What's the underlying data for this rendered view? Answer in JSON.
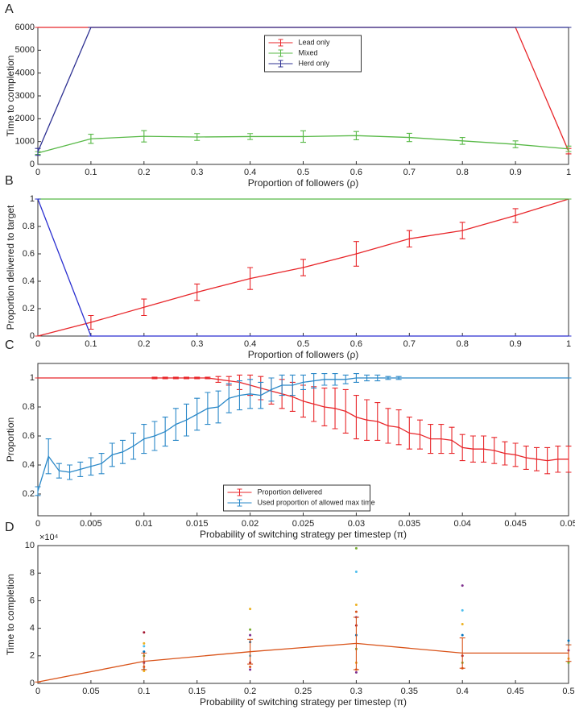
{
  "chart_data": [
    {
      "type": "line",
      "label": "A",
      "xlabel": "Proportion of followers (ρ)",
      "ylabel": "Time to completion",
      "x": [
        0,
        0.1,
        0.2,
        0.3,
        0.4,
        0.5,
        0.6,
        0.7,
        0.8,
        0.9,
        1
      ],
      "xlim": [
        0,
        1
      ],
      "xticks": [
        0,
        0.1,
        0.2,
        0.3,
        0.4,
        0.5,
        0.6,
        0.7,
        0.8,
        0.9,
        1
      ],
      "ylim": [
        0,
        6000
      ],
      "yticks": [
        0,
        1000,
        2000,
        3000,
        4000,
        5000,
        6000
      ],
      "legend": "upper center",
      "series": [
        {
          "name": "Lead only",
          "color": "#e8262a",
          "values": [
            6000,
            6000,
            6000,
            6000,
            6000,
            6000,
            6000,
            6000,
            6000,
            6000,
            580
          ],
          "errors": [
            0,
            0,
            0,
            0,
            0,
            0,
            0,
            0,
            0,
            0,
            120
          ]
        },
        {
          "name": "Mixed",
          "color": "#58b947",
          "values": [
            500,
            1120,
            1230,
            1200,
            1220,
            1220,
            1260,
            1180,
            1030,
            880,
            680
          ],
          "errors": [
            60,
            200,
            250,
            150,
            130,
            250,
            180,
            180,
            150,
            150,
            120
          ]
        },
        {
          "name": "Herd only",
          "color": "#2e3192",
          "values": [
            550,
            6000,
            6000,
            6000,
            6000,
            6000,
            6000,
            6000,
            6000,
            6000,
            6000
          ],
          "errors": [
            150,
            0,
            0,
            0,
            0,
            0,
            0,
            0,
            0,
            0,
            0
          ]
        }
      ]
    },
    {
      "type": "line",
      "label": "B",
      "xlabel": "Proportion of followers (ρ)",
      "ylabel": "Proportion delivered to target",
      "x": [
        0,
        0.1,
        0.2,
        0.3,
        0.4,
        0.5,
        0.6,
        0.7,
        0.8,
        0.9,
        1
      ],
      "xlim": [
        0,
        1
      ],
      "xticks": [
        0,
        0.1,
        0.2,
        0.3,
        0.4,
        0.5,
        0.6,
        0.7,
        0.8,
        0.9,
        1
      ],
      "ylim": [
        0,
        1
      ],
      "yticks": [
        0,
        0.2,
        0.4,
        0.6,
        0.8,
        1
      ],
      "series": [
        {
          "color": "#e8262a",
          "values": [
            0,
            0.1,
            0.21,
            0.32,
            0.42,
            0.5,
            0.6,
            0.71,
            0.77,
            0.88,
            1
          ],
          "errors": [
            0,
            0.05,
            0.06,
            0.06,
            0.08,
            0.06,
            0.09,
            0.06,
            0.06,
            0.05,
            0
          ]
        },
        {
          "color": "#58b947",
          "values": [
            1,
            1,
            1,
            1,
            1,
            1,
            1,
            1,
            1,
            1,
            1
          ],
          "errors": [
            0,
            0,
            0,
            0,
            0,
            0,
            0,
            0,
            0,
            0,
            0
          ]
        },
        {
          "color": "#2a2fd0",
          "values": [
            1,
            0,
            0,
            0,
            0,
            0,
            0,
            0,
            0,
            0,
            0
          ],
          "errors": [
            0,
            0,
            0,
            0,
            0,
            0,
            0,
            0,
            0,
            0,
            0
          ]
        }
      ]
    },
    {
      "type": "line",
      "label": "C",
      "xlabel": "Probability of switching strategy per timestep (π)",
      "ylabel": "Proportion",
      "x": [
        0,
        0.001,
        0.002,
        0.003,
        0.004,
        0.005,
        0.006,
        0.007,
        0.008,
        0.009,
        0.01,
        0.011,
        0.012,
        0.013,
        0.014,
        0.015,
        0.016,
        0.017,
        0.018,
        0.019,
        0.02,
        0.021,
        0.022,
        0.023,
        0.024,
        0.025,
        0.026,
        0.027,
        0.028,
        0.029,
        0.03,
        0.031,
        0.032,
        0.033,
        0.034,
        0.035,
        0.036,
        0.037,
        0.038,
        0.039,
        0.04,
        0.041,
        0.042,
        0.043,
        0.044,
        0.045,
        0.046,
        0.047,
        0.048,
        0.049,
        0.05
      ],
      "xlim": [
        0,
        0.05
      ],
      "xticks": [
        0,
        0.005,
        0.01,
        0.015,
        0.02,
        0.025,
        0.03,
        0.035,
        0.04,
        0.045,
        0.05
      ],
      "ylim": [
        0.05,
        1.1
      ],
      "yticks": [
        0.2,
        0.4,
        0.6,
        0.8,
        1
      ],
      "legend": "lower center",
      "series": [
        {
          "name": "Proportion delivered",
          "color": "#e8262a",
          "values": [
            1,
            1,
            1,
            1,
            1,
            1,
            1,
            1,
            1,
            1,
            1,
            1,
            1,
            1,
            1,
            1,
            1,
            0.99,
            0.98,
            0.97,
            0.95,
            0.93,
            0.91,
            0.89,
            0.87,
            0.84,
            0.82,
            0.8,
            0.79,
            0.77,
            0.73,
            0.71,
            0.7,
            0.67,
            0.66,
            0.62,
            0.61,
            0.58,
            0.58,
            0.57,
            0.52,
            0.51,
            0.51,
            0.5,
            0.48,
            0.47,
            0.45,
            0.44,
            0.43,
            0.44,
            0.44
          ],
          "errors": [
            0,
            0,
            0,
            0,
            0,
            0,
            0,
            0,
            0,
            0,
            0,
            0.005,
            0.005,
            0.005,
            0.005,
            0.005,
            0.005,
            0.02,
            0.03,
            0.05,
            0.07,
            0.08,
            0.09,
            0.1,
            0.1,
            0.11,
            0.12,
            0.13,
            0.14,
            0.15,
            0.15,
            0.14,
            0.13,
            0.12,
            0.12,
            0.11,
            0.1,
            0.1,
            0.1,
            0.09,
            0.09,
            0.09,
            0.09,
            0.09,
            0.08,
            0.08,
            0.08,
            0.08,
            0.09,
            0.09,
            0.09
          ]
        },
        {
          "name": "Used proportion of allowed max time",
          "color": "#2a88c8",
          "values": [
            0.22,
            0.46,
            0.36,
            0.35,
            0.37,
            0.39,
            0.41,
            0.47,
            0.49,
            0.53,
            0.58,
            0.6,
            0.63,
            0.68,
            0.71,
            0.75,
            0.79,
            0.8,
            0.86,
            0.88,
            0.89,
            0.88,
            0.92,
            0.95,
            0.95,
            0.97,
            0.98,
            0.99,
            0.99,
            0.99,
            1,
            1,
            1,
            1,
            1,
            1,
            1,
            1,
            1,
            1,
            1,
            1,
            1,
            1,
            1,
            1,
            1,
            1,
            1,
            1,
            1
          ],
          "errors": [
            0.03,
            0.12,
            0.05,
            0.05,
            0.05,
            0.06,
            0.07,
            0.08,
            0.08,
            0.09,
            0.1,
            0.1,
            0.1,
            0.11,
            0.11,
            0.11,
            0.11,
            0.11,
            0.1,
            0.1,
            0.1,
            0.09,
            0.08,
            0.07,
            0.07,
            0.05,
            0.05,
            0.04,
            0.04,
            0.03,
            0.03,
            0.02,
            0.02,
            0.01,
            0.01,
            0,
            0,
            0,
            0,
            0,
            0,
            0,
            0,
            0,
            0,
            0,
            0,
            0,
            0,
            0,
            0
          ]
        }
      ]
    },
    {
      "type": "line",
      "label": "D",
      "xlabel": "Probability of switching strategy per timestep (π)",
      "ylabel": "Time to completion",
      "axis_multiplier": "×10⁴",
      "x": [
        0,
        0.1,
        0.2,
        0.3,
        0.4,
        0.5
      ],
      "xlim": [
        0,
        0.5
      ],
      "xticks": [
        0,
        0.05,
        0.1,
        0.15,
        0.2,
        0.25,
        0.3,
        0.35,
        0.4,
        0.45,
        0.5
      ],
      "ylim": [
        0,
        10
      ],
      "yticks": [
        0,
        2,
        4,
        6,
        8,
        10
      ],
      "series": [
        {
          "color": "#d95319",
          "values": [
            0.1,
            1.6,
            2.3,
            2.9,
            2.2,
            2.2
          ],
          "errors": [
            0,
            0.6,
            0.9,
            1.9,
            1.1,
            0.6
          ]
        }
      ],
      "scatter": {
        "x": [
          0.1,
          0.1,
          0.1,
          0.1,
          0.1,
          0.1,
          0.1,
          0.1,
          0.1,
          0.2,
          0.2,
          0.2,
          0.2,
          0.2,
          0.2,
          0.2,
          0.2,
          0.3,
          0.3,
          0.3,
          0.3,
          0.3,
          0.3,
          0.3,
          0.3,
          0.3,
          0.3,
          0.3,
          0.4,
          0.4,
          0.4,
          0.4,
          0.4,
          0.4,
          0.4,
          0.5,
          0.5,
          0.5,
          0.5,
          0.5
        ],
        "y": [
          3.7,
          2.9,
          2.7,
          2.3,
          2,
          1.5,
          1.2,
          1,
          0.9,
          5.4,
          3.9,
          3.5,
          3,
          2,
          1.5,
          1.2,
          1,
          9.8,
          8.1,
          5.7,
          5.2,
          4.8,
          4.2,
          3.5,
          2.5,
          1.5,
          1,
          0.8,
          7.1,
          5.3,
          4.3,
          3.5,
          2,
          1.5,
          1.1,
          3.1,
          2.8,
          2.4,
          1.8,
          1.5
        ],
        "colors": [
          "#a2142f",
          "#edb120",
          "#4dbeee",
          "#0072bd",
          "#77ac30",
          "#7e2f8e",
          "#d95319",
          "#0072bd",
          "#edb120",
          "#edb120",
          "#77ac30",
          "#7e2f8e",
          "#0072bd",
          "#4dbeee",
          "#a2142f",
          "#d95319",
          "#7e2f8e",
          "#77ac30",
          "#4dbeee",
          "#edb120",
          "#d95319",
          "#7e2f8e",
          "#a2142f",
          "#0072bd",
          "#77ac30",
          "#edb120",
          "#d95319",
          "#7e2f8e",
          "#7e2f8e",
          "#4dbeee",
          "#edb120",
          "#0072bd",
          "#a2142f",
          "#77ac30",
          "#d95319",
          "#0072bd",
          "#4dbeee",
          "#7e2f8e",
          "#edb120",
          "#77ac30"
        ]
      }
    }
  ]
}
